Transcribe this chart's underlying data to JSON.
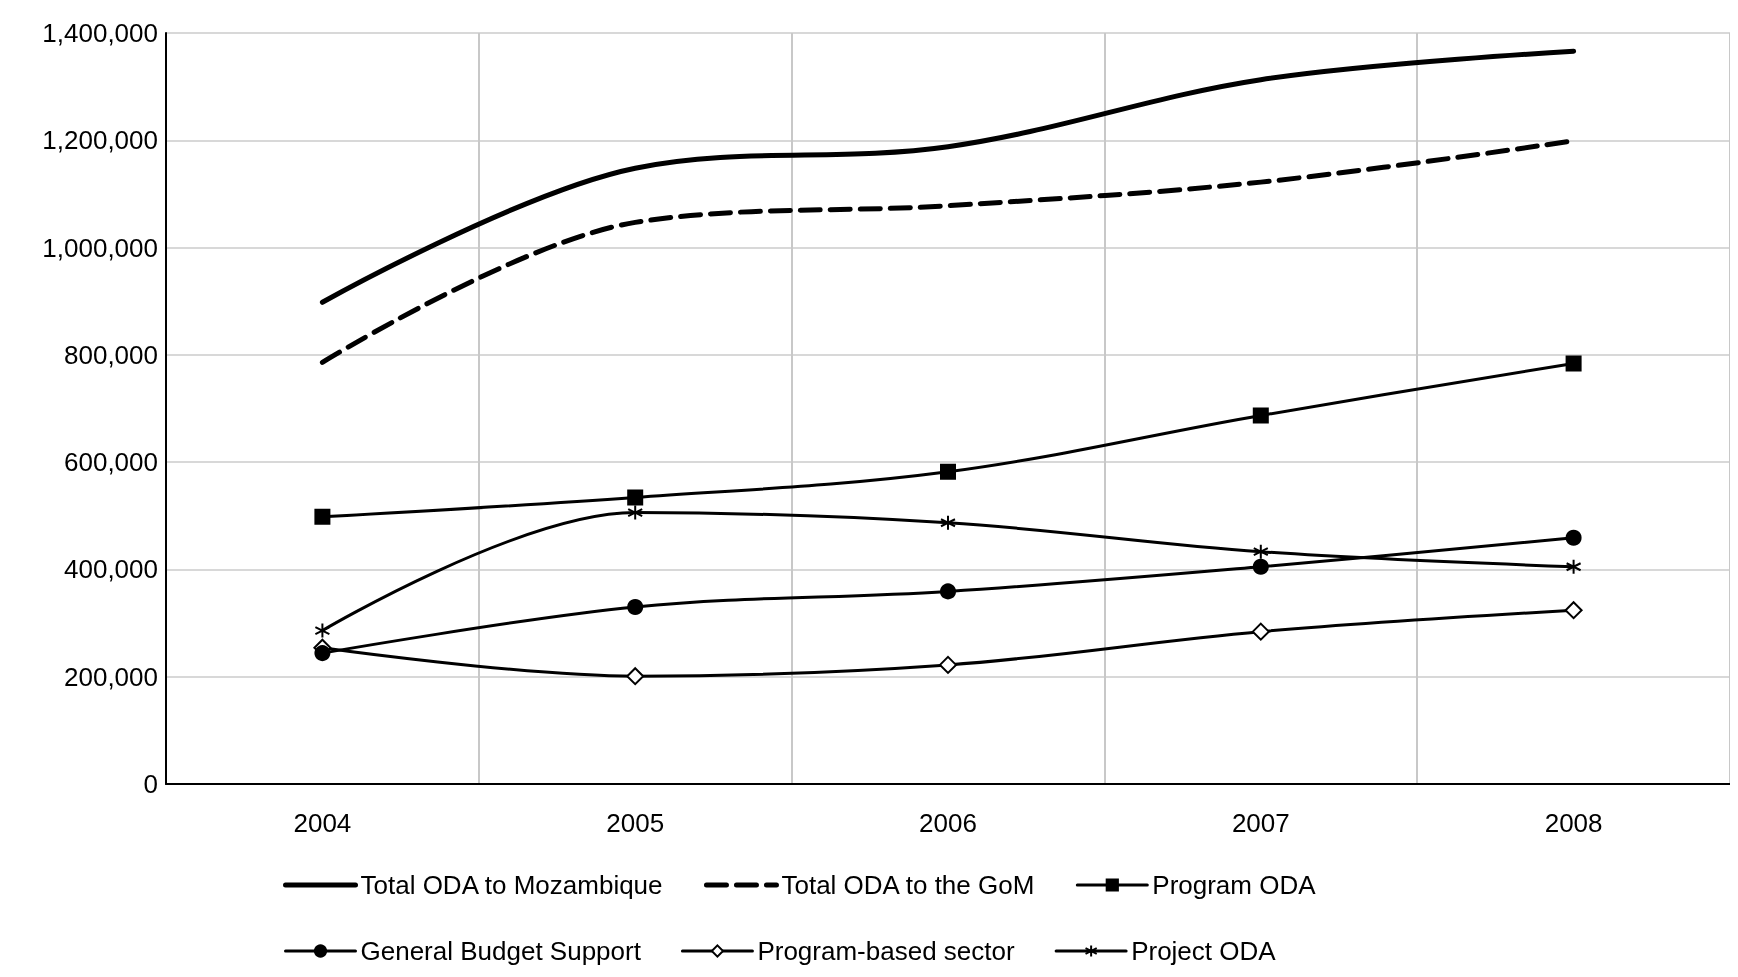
{
  "chart_data": {
    "type": "line",
    "categories": [
      "2004",
      "2005",
      "2006",
      "2007",
      "2008"
    ],
    "ylim": [
      0,
      1400000
    ],
    "yticks": [
      0,
      {
        "value": 200000,
        "label": "200,000"
      },
      {
        "value": 400000,
        "label": "400,000"
      },
      {
        "value": 600000,
        "label": "600,000"
      },
      {
        "value": 800000,
        "label": "800,000"
      },
      {
        "value": 1000000,
        "label": "1,000,000"
      },
      {
        "value": 1200000,
        "label": "1,200,000"
      },
      {
        "value": 1400000,
        "label": "1,400,000"
      }
    ],
    "grid": true,
    "legend": "bottom",
    "series": [
      {
        "name": "Total ODA to Mozambique",
        "color": "#000000",
        "values": [
          898000,
          1148000,
          1188000,
          1313000,
          1366000
        ],
        "marker": "none",
        "line_style": "solid"
      },
      {
        "name": "Total ODA to the GoM",
        "color": "#000000",
        "values": [
          786000,
          1047000,
          1078000,
          1122000,
          1199000
        ],
        "marker": "none",
        "line_style": "dashed"
      },
      {
        "name": "Program ODA",
        "color": "#000000",
        "values": [
          498000,
          534000,
          582000,
          687000,
          784000
        ],
        "marker": "square",
        "line_style": "solid"
      },
      {
        "name": "General Budget Support",
        "color": "#000000",
        "values": [
          244000,
          330000,
          359000,
          405000,
          459000
        ],
        "marker": "circle",
        "line_style": "solid"
      },
      {
        "name": "Program-based sector",
        "color": "#000000",
        "values": [
          254000,
          201000,
          222000,
          284000,
          324000
        ],
        "marker": "diamond",
        "line_style": "solid"
      },
      {
        "name": "Project ODA",
        "color": "#000000",
        "values": [
          286000,
          506000,
          487000,
          433000,
          405000
        ],
        "marker": "cross",
        "line_style": "solid"
      }
    ]
  }
}
